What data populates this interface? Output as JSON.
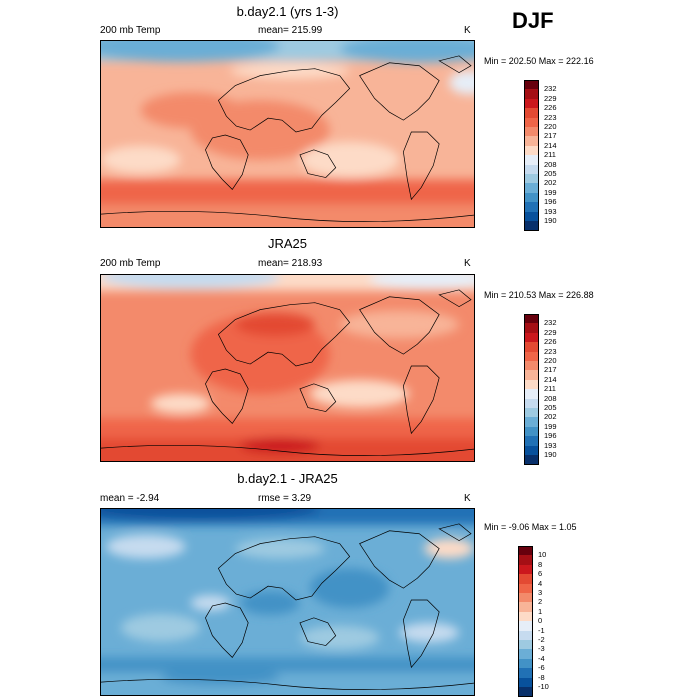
{
  "season": "DJF",
  "panels": [
    {
      "title": "b.day2.1 (yrs 1-3)",
      "left_label": "200 mb Temp",
      "center_label": "mean= 215.99",
      "units": "K",
      "minmax": "Min = 202.50 Max = 222.16",
      "colorbar": {
        "labels": [
          "232",
          "229",
          "226",
          "223",
          "220",
          "217",
          "214",
          "211",
          "208",
          "205",
          "202",
          "199",
          "196",
          "193",
          "190"
        ],
        "colors": [
          "#67000d",
          "#a50f15",
          "#cb181d",
          "#e34a33",
          "#ef6548",
          "#f38a6b",
          "#f8b498",
          "#fddbc7",
          "#e6eef8",
          "#c6dbef",
          "#9ecae1",
          "#6baed6",
          "#4292c6",
          "#2171b5",
          "#08519c",
          "#08306b"
        ]
      }
    },
    {
      "title": "JRA25",
      "left_label": "200 mb Temp",
      "center_label": "mean= 218.93",
      "units": "K",
      "minmax": "Min = 210.53 Max = 226.88",
      "colorbar": {
        "labels": [
          "232",
          "229",
          "226",
          "223",
          "220",
          "217",
          "214",
          "211",
          "208",
          "205",
          "202",
          "199",
          "196",
          "193",
          "190"
        ],
        "colors": [
          "#67000d",
          "#a50f15",
          "#cb181d",
          "#e34a33",
          "#ef6548",
          "#f38a6b",
          "#f8b498",
          "#fddbc7",
          "#e6eef8",
          "#c6dbef",
          "#9ecae1",
          "#6baed6",
          "#4292c6",
          "#2171b5",
          "#08519c",
          "#08306b"
        ]
      }
    },
    {
      "title": "b.day2.1 - JRA25",
      "left_label": "mean =  -2.94",
      "center_label": "rmse =   3.29",
      "units": "K",
      "minmax": "Min =  -9.06 Max =   1.05",
      "colorbar": {
        "labels": [
          "10",
          "8",
          "6",
          "4",
          "3",
          "2",
          "1",
          "0",
          "-1",
          "-2",
          "-3",
          "-4",
          "-6",
          "-8",
          "-10"
        ],
        "colors": [
          "#67000d",
          "#a50f15",
          "#cb181d",
          "#e34a33",
          "#ef6548",
          "#f38a6b",
          "#f8b498",
          "#fddbc7",
          "#e6eef8",
          "#c6dbef",
          "#9ecae1",
          "#6baed6",
          "#4292c6",
          "#2171b5",
          "#08519c",
          "#08306b"
        ]
      }
    }
  ],
  "chart_data": [
    {
      "type": "heatmap",
      "title": "b.day2.1 (yrs 1-3)",
      "variable": "200 mb Temp",
      "units": "K",
      "mean": 215.99,
      "min": 202.5,
      "max": 222.16,
      "contour_levels": [
        190,
        193,
        196,
        199,
        202,
        205,
        208,
        211,
        214,
        217,
        220,
        223,
        226,
        229,
        232
      ]
    },
    {
      "type": "heatmap",
      "title": "JRA25",
      "variable": "200 mb Temp",
      "units": "K",
      "mean": 218.93,
      "min": 210.53,
      "max": 226.88,
      "contour_levels": [
        190,
        193,
        196,
        199,
        202,
        205,
        208,
        211,
        214,
        217,
        220,
        223,
        226,
        229,
        232
      ]
    },
    {
      "type": "heatmap",
      "title": "b.day2.1 - JRA25",
      "units": "K",
      "mean": -2.94,
      "rmse": 3.29,
      "min": -9.06,
      "max": 1.05,
      "contour_levels": [
        -10,
        -8,
        -6,
        -4,
        -3,
        -2,
        -1,
        0,
        1,
        2,
        3,
        4,
        6,
        8,
        10
      ]
    }
  ]
}
